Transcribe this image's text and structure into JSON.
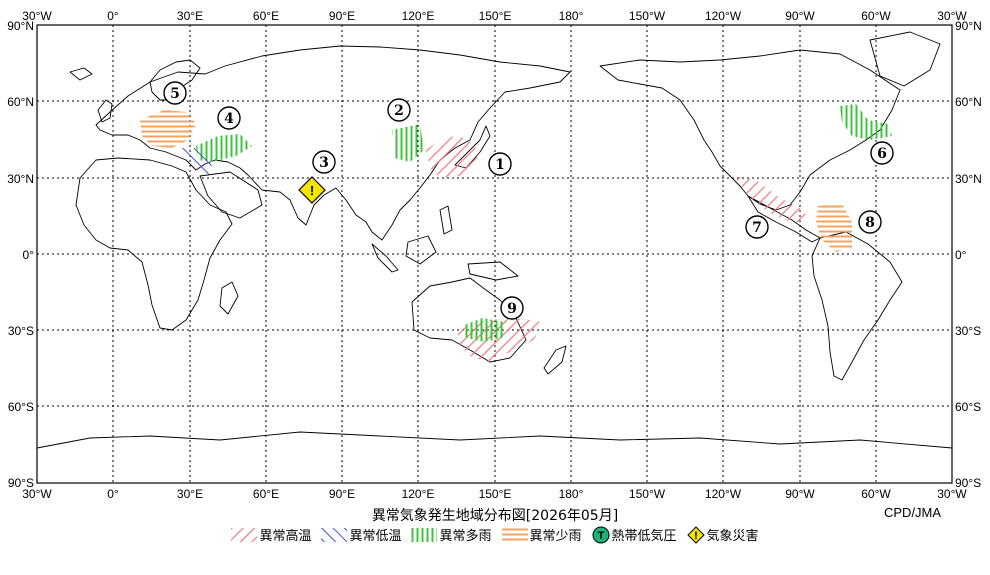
{
  "map": {
    "top_lon_labels": [
      "30°W",
      "0°",
      "30°E",
      "60°E",
      "90°E",
      "120°E",
      "150°E",
      "180°",
      "150°W",
      "120°W",
      "90°W",
      "60°W",
      "30°W"
    ],
    "bottom_lon_labels": [
      "30°W",
      "0°",
      "30°E",
      "60°E",
      "90°E",
      "120°E",
      "150°E",
      "180°",
      "150°W",
      "120°W",
      "90°W",
      "60°W",
      "30°W"
    ],
    "left_lat_labels": [
      "90°N",
      "60°N",
      "30°N",
      "0°",
      "30°S",
      "60°S",
      "90°S"
    ],
    "right_lat_labels": [
      "90°N",
      "60°N",
      "30°N",
      "0°",
      "30°S",
      "60°S",
      "90°S"
    ]
  },
  "regions": [
    {
      "id": "1",
      "type": "heat",
      "marker": "①"
    },
    {
      "id": "2",
      "type": "wet",
      "marker": "②"
    },
    {
      "id": "3",
      "type": "disaster",
      "marker": "③"
    },
    {
      "id": "4",
      "type": "wet",
      "marker": "④"
    },
    {
      "id": "5",
      "type": "dry",
      "marker": "⑤"
    },
    {
      "id": "6",
      "type": "wet",
      "marker": "⑥"
    },
    {
      "id": "7",
      "type": "heat",
      "marker": "⑦"
    },
    {
      "id": "8",
      "type": "dry",
      "marker": "⑧"
    },
    {
      "id": "9",
      "type": "heat",
      "marker": "⑨"
    }
  ],
  "colors": {
    "heat": "#f0787a",
    "cold": "#3a57d4",
    "wet": "#3cc43c",
    "dry": "#f3a35f",
    "cyclone": "#1bb27a",
    "disaster": "#f5e400"
  },
  "caption": "異常気象発生地域分布図[2026年05月]",
  "credit": "CPD/JMA",
  "legend": [
    {
      "key": "heat",
      "label": "異常高温"
    },
    {
      "key": "cold",
      "label": "異常低温"
    },
    {
      "key": "wet",
      "label": "異常多雨"
    },
    {
      "key": "dry",
      "label": "異常少雨"
    },
    {
      "key": "cyclone",
      "label": "熱帯低気圧",
      "icon_text": "T"
    },
    {
      "key": "disaster",
      "label": "気象災害",
      "icon_text": "!"
    }
  ]
}
